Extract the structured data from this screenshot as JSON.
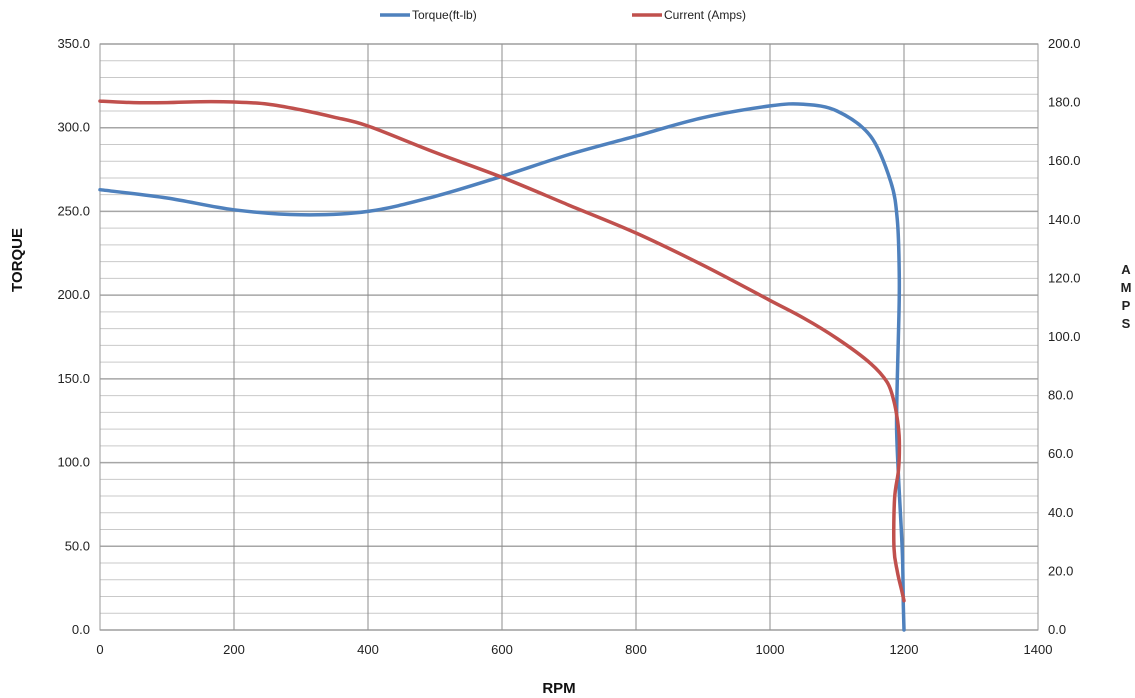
{
  "chart_data": {
    "type": "line",
    "title": "",
    "xlabel": "RPM",
    "ylabel": "TORQUE",
    "y2label": "AMPS",
    "y2label_letters": [
      "A",
      "M",
      "P",
      "S"
    ],
    "xlim": [
      0,
      1400
    ],
    "ylim": [
      0,
      350
    ],
    "y2lim": [
      0,
      200
    ],
    "x_ticks": [
      "0",
      "200",
      "400",
      "600",
      "800",
      "1000",
      "1200",
      "1400"
    ],
    "y_ticks": [
      "0.0",
      "50.0",
      "100.0",
      "150.0",
      "200.0",
      "250.0",
      "300.0",
      "350.0"
    ],
    "y2_ticks": [
      "0.0",
      "20.0",
      "40.0",
      "60.0",
      "80.0",
      "100.0",
      "120.0",
      "140.0",
      "160.0",
      "180.0",
      "200.0"
    ],
    "grid": true,
    "legend_position": "top",
    "series": [
      {
        "name": "Torque(ft-lb)",
        "axis": "left",
        "color": "#4f81bd",
        "x": [
          0,
          100,
          200,
          300,
          400,
          500,
          600,
          700,
          800,
          900,
          1000,
          1050,
          1100,
          1150,
          1180,
          1190,
          1193,
          1192,
          1190,
          1189,
          1192,
          1196,
          1198,
          1199,
          1200
        ],
        "y": [
          263,
          258,
          251,
          248,
          250,
          259,
          271,
          284,
          295,
          306,
          313,
          314,
          310,
          295,
          268,
          245,
          210,
          180,
          150,
          120,
          90,
          60,
          40,
          15,
          0
        ]
      },
      {
        "name": "Current (Amps)",
        "axis": "right",
        "color": "#c0504d",
        "x": [
          0,
          50,
          100,
          150,
          200,
          250,
          300,
          350,
          400,
          500,
          600,
          700,
          800,
          900,
          1000,
          1050,
          1100,
          1150,
          1175,
          1185,
          1190,
          1193,
          1192,
          1186,
          1185,
          1190,
          1197,
          1200
        ],
        "y": [
          180.5,
          180,
          180,
          180.3,
          180.2,
          179.5,
          177.5,
          175,
          172,
          163,
          154.5,
          145,
          135.5,
          124.5,
          112.5,
          106.5,
          99.5,
          91,
          84.5,
          78,
          72,
          65,
          55,
          45,
          28,
          20,
          13,
          10
        ]
      }
    ]
  }
}
